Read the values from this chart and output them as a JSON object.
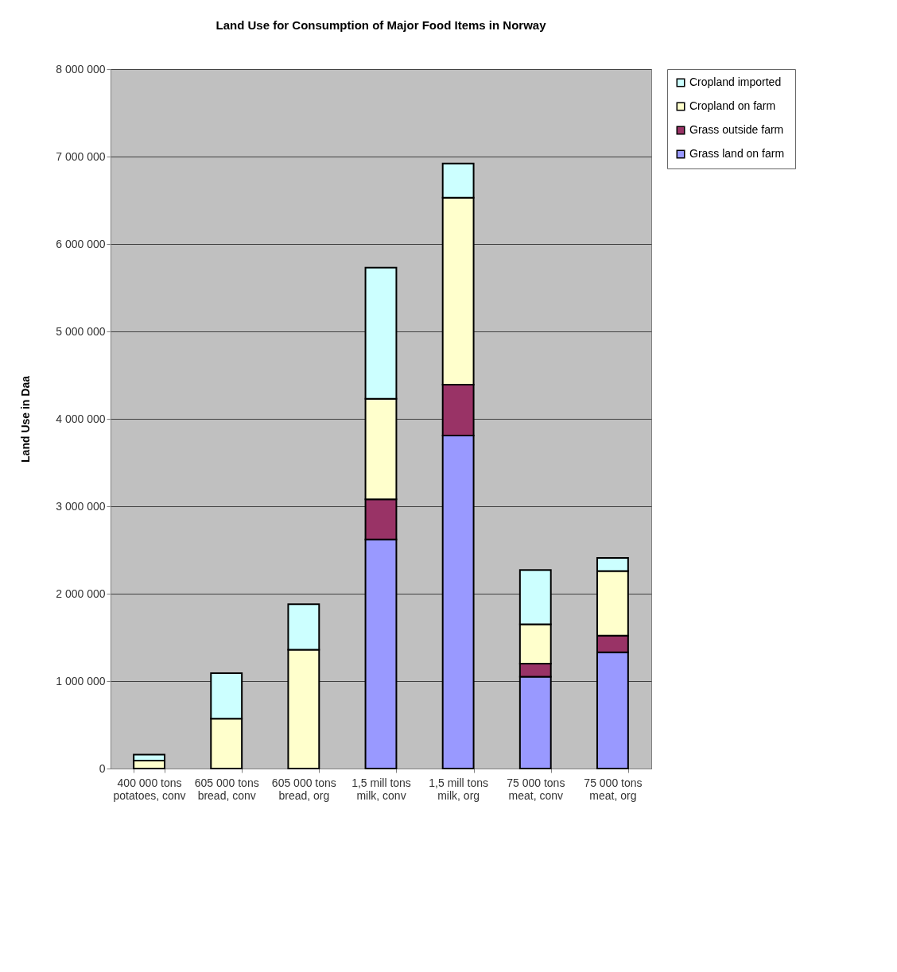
{
  "chart_data": {
    "type": "bar",
    "title": "Land Use for Consumption of Major Food Items in Norway",
    "ylabel": "Land Use in Daa",
    "categories": [
      "400 000 tons potatoes, conv",
      "605 000 tons bread, conv",
      "605 000 tons bread, org",
      "1,5 mill tons milk, conv",
      "1,5 mill tons milk, org",
      "75 000 tons meat, conv",
      "75 000 tons meat, org"
    ],
    "stacked": true,
    "series": [
      {
        "name": "Grass land on farm",
        "color": "#9999ff",
        "values": [
          0,
          0,
          0,
          2620000,
          3810000,
          1050000,
          1330000
        ]
      },
      {
        "name": "Grass outside  farm",
        "color": "#993366",
        "values": [
          0,
          0,
          0,
          460000,
          580000,
          150000,
          190000
        ]
      },
      {
        "name": "Cropland on farm",
        "color": "#ffffcc",
        "values": [
          90000,
          570000,
          1360000,
          1150000,
          2140000,
          450000,
          740000
        ]
      },
      {
        "name": "Cropland imported",
        "color": "#ccffff",
        "values": [
          70000,
          520000,
          520000,
          1500000,
          390000,
          620000,
          150000
        ]
      }
    ],
    "ylim": [
      0,
      8000000
    ],
    "yticks": [
      {
        "value": 0,
        "label": "0"
      },
      {
        "value": 1000000,
        "label": "1 000 000"
      },
      {
        "value": 2000000,
        "label": "2 000 000"
      },
      {
        "value": 3000000,
        "label": "3 000 000"
      },
      {
        "value": 4000000,
        "label": "4 000 000"
      },
      {
        "value": 5000000,
        "label": "5 000 000"
      },
      {
        "value": 6000000,
        "label": "6 000 000"
      },
      {
        "value": 7000000,
        "label": "7 000 000"
      },
      {
        "value": 8000000,
        "label": "8 000 000"
      }
    ],
    "grid": "y",
    "legend": "right"
  }
}
